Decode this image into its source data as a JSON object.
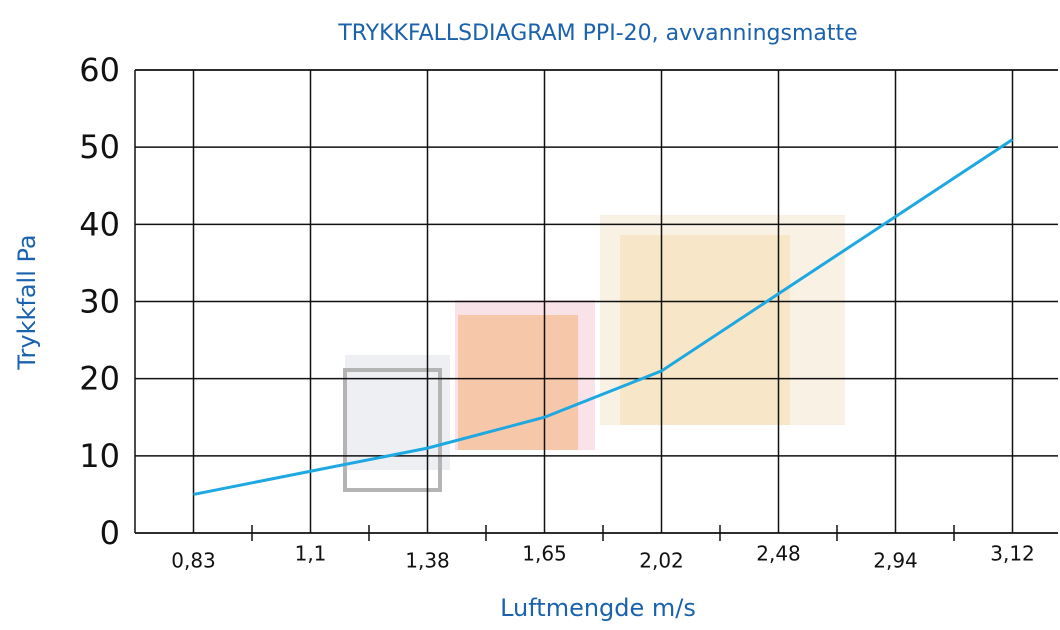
{
  "chart_data": {
    "type": "line",
    "title": "TRYKKFALLSDIAGRAM PPI-20, avvanningsmatte",
    "x_label": "Luftmengde m/s",
    "y_label": "Trykkfall Pa",
    "categories": [
      "0,83",
      "1,1",
      "1,38",
      "1,65",
      "2,02",
      "2,48",
      "2,94",
      "3,12"
    ],
    "values": [
      5,
      8,
      11,
      15,
      21,
      31,
      41,
      51
    ],
    "color": "#1ea8e2",
    "ylim": [
      0,
      60
    ],
    "yticks": [
      0,
      10,
      20,
      30,
      40,
      50,
      60
    ],
    "grid": true
  }
}
